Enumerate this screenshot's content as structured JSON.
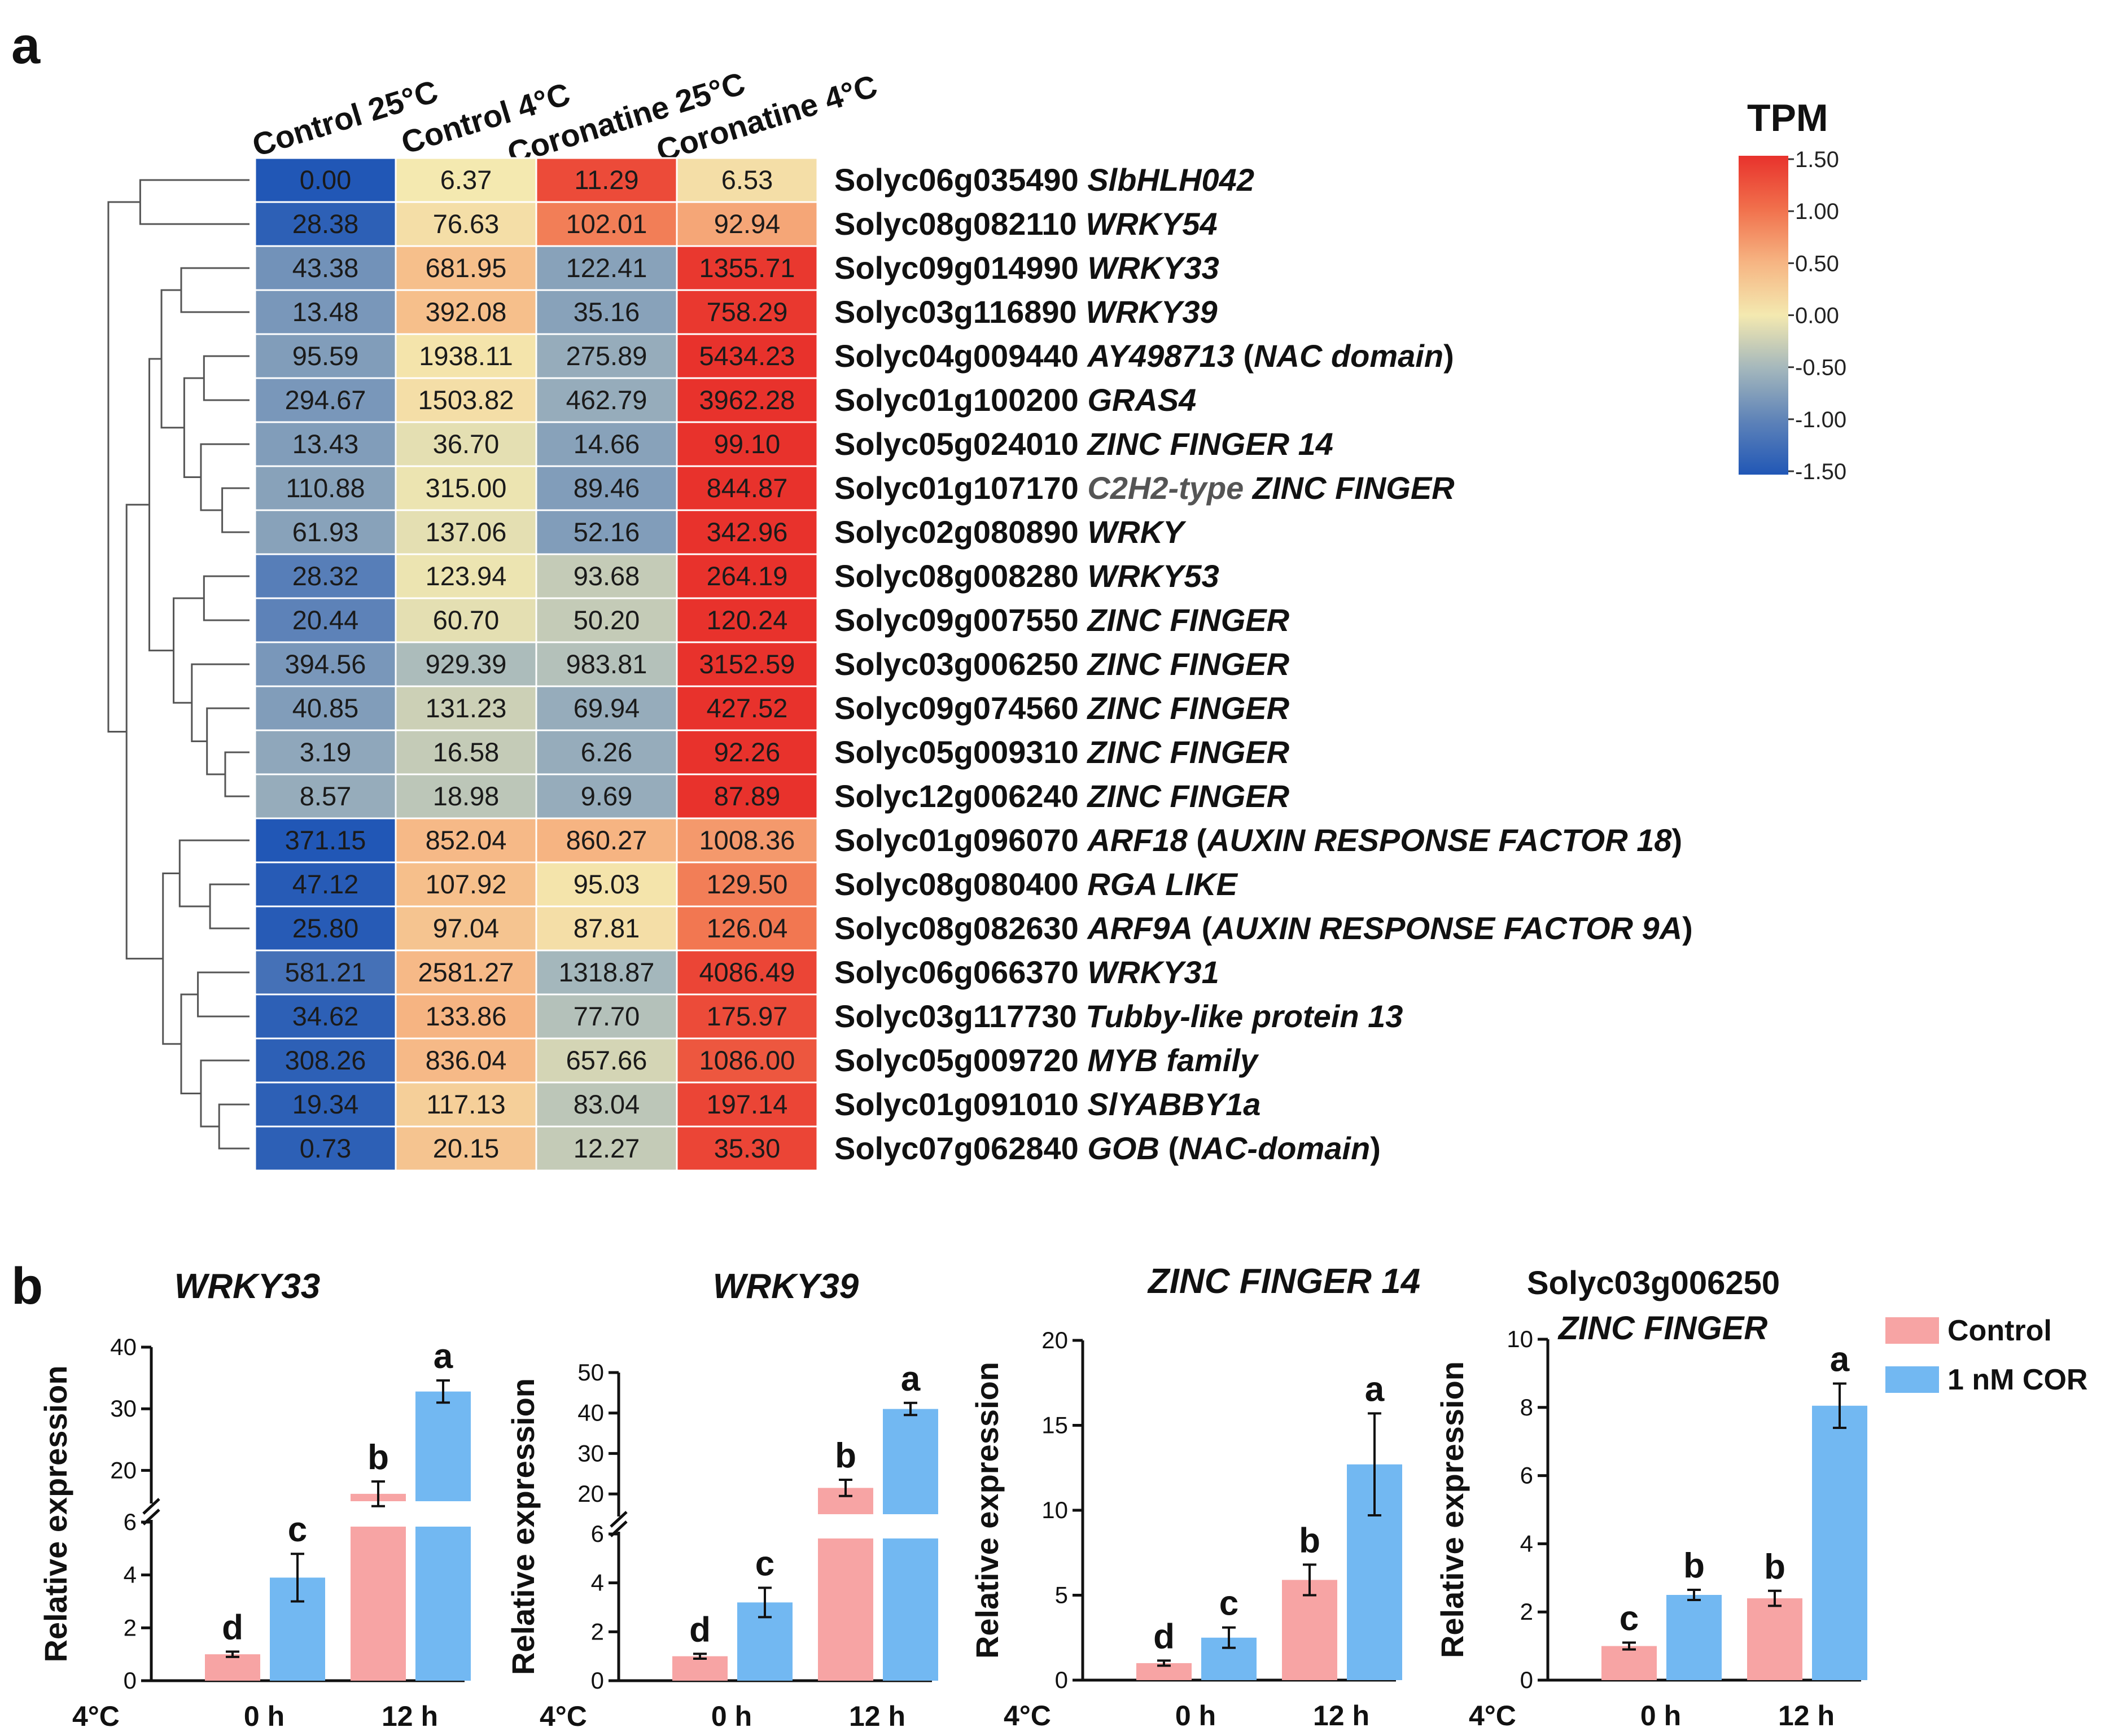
{
  "panel_a": {
    "label": "a",
    "columns": [
      "Control 25°C",
      "Control 4°C",
      "Coronatine 25°C",
      "Coronatine 4°C"
    ],
    "legend_title": "TPM",
    "legend_ticks": [
      "1.50",
      "1.00",
      "0.50",
      "0.00",
      "-0.50",
      "-1.00",
      "-1.50"
    ],
    "color_scale": [
      "#2157b6",
      "#5d82b8",
      "#a4b7bc",
      "#f4e9b0",
      "#f6b482",
      "#f1704c",
      "#e8322c"
    ],
    "rows": [
      {
        "id": "Solyc06g035490",
        "name": [
          [
            "SlbHLH042",
            true
          ]
        ],
        "values": [
          "0.00",
          "6.37",
          "11.29",
          "6.53"
        ],
        "z": [
          -1.5,
          0.0,
          1.3,
          0.1
        ]
      },
      {
        "id": "Solyc08g082110",
        "name": [
          [
            "WRKY54",
            true
          ]
        ],
        "values": [
          "28.38",
          "76.63",
          "102.01",
          "92.94"
        ],
        "z": [
          -1.4,
          0.1,
          0.9,
          0.6
        ]
      },
      {
        "id": "Solyc09g014990",
        "name": [
          [
            "WRKY33",
            true
          ]
        ],
        "values": [
          "43.38",
          "681.95",
          "122.41",
          "1355.71"
        ],
        "z": [
          -0.85,
          0.4,
          -0.7,
          1.45
        ]
      },
      {
        "id": "Solyc03g116890",
        "name": [
          [
            "WRKY39",
            true
          ]
        ],
        "values": [
          "13.48",
          "392.08",
          "35.16",
          "758.29"
        ],
        "z": [
          -0.8,
          0.4,
          -0.7,
          1.45
        ]
      },
      {
        "id": "Solyc04g009440",
        "name": [
          [
            "AY498713",
            true
          ],
          [
            " (",
            false
          ],
          [
            "NAC domain",
            true
          ],
          [
            ")",
            false
          ]
        ],
        "values": [
          "95.59",
          "1938.11",
          "275.89",
          "5434.23"
        ],
        "z": [
          -0.75,
          0.05,
          -0.6,
          1.5
        ]
      },
      {
        "id": "Solyc01g100200",
        "name": [
          [
            "GRAS4",
            true
          ]
        ],
        "values": [
          "294.67",
          "1503.82",
          "462.79",
          "3962.28"
        ],
        "z": [
          -0.8,
          0.1,
          -0.6,
          1.5
        ]
      },
      {
        "id": "Solyc05g024010",
        "name": [
          [
            "ZINC FINGER 14",
            true
          ]
        ],
        "values": [
          "13.43",
          "36.70",
          "14.66",
          "99.10"
        ],
        "z": [
          -0.75,
          -0.1,
          -0.7,
          1.5
        ]
      },
      {
        "id": "Solyc01g107170",
        "name": [
          [
            "C2H2-type",
            true,
            "#555555"
          ],
          [
            " ",
            false
          ],
          [
            "ZINC FINGER",
            true
          ]
        ],
        "values": [
          "110.88",
          "315.00",
          "89.46",
          "844.87"
        ],
        "z": [
          -0.7,
          -0.05,
          -0.75,
          1.5
        ]
      },
      {
        "id": "Solyc02g080890",
        "name": [
          [
            "WRKY",
            true
          ]
        ],
        "values": [
          "61.93",
          "137.06",
          "52.16",
          "342.96"
        ],
        "z": [
          -0.7,
          -0.1,
          -0.75,
          1.5
        ]
      },
      {
        "id": "Solyc08g008280",
        "name": [
          [
            "WRKY53",
            true
          ]
        ],
        "values": [
          "28.32",
          "123.94",
          "93.68",
          "264.19"
        ],
        "z": [
          -1.05,
          -0.05,
          -0.3,
          1.5
        ]
      },
      {
        "id": "Solyc09g007550",
        "name": [
          [
            "ZINC FINGER",
            true
          ]
        ],
        "values": [
          "20.44",
          "60.70",
          "50.20",
          "120.24"
        ],
        "z": [
          -1.0,
          -0.1,
          -0.3,
          1.5
        ]
      },
      {
        "id": "Solyc03g006250",
        "name": [
          [
            "ZINC FINGER",
            true
          ]
        ],
        "values": [
          "394.56",
          "929.39",
          "983.81",
          "3152.59"
        ],
        "z": [
          -0.8,
          -0.45,
          -0.4,
          1.5
        ]
      },
      {
        "id": "Solyc09g074560",
        "name": [
          [
            "ZINC FINGER",
            true
          ]
        ],
        "values": [
          "40.85",
          "131.23",
          "69.94",
          "427.52"
        ],
        "z": [
          -0.75,
          -0.25,
          -0.6,
          1.5
        ]
      },
      {
        "id": "Solyc05g009310",
        "name": [
          [
            "ZINC FINGER",
            true
          ]
        ],
        "values": [
          "3.19",
          "16.58",
          "6.26",
          "92.26"
        ],
        "z": [
          -0.65,
          -0.3,
          -0.6,
          1.5
        ]
      },
      {
        "id": "Solyc12g006240",
        "name": [
          [
            "ZINC FINGER",
            true
          ]
        ],
        "values": [
          "8.57",
          "18.98",
          "9.69",
          "87.89"
        ],
        "z": [
          -0.6,
          -0.35,
          -0.6,
          1.5
        ]
      },
      {
        "id": "Solyc01g096070",
        "name": [
          [
            "ARF18",
            true
          ],
          [
            " (",
            false
          ],
          [
            "AUXIN RESPONSE FACTOR 18",
            true
          ],
          [
            ")",
            false
          ]
        ],
        "values": [
          "371.15",
          "852.04",
          "860.27",
          "1008.36"
        ],
        "z": [
          -1.5,
          0.45,
          0.5,
          0.7
        ]
      },
      {
        "id": "Solyc08g080400",
        "name": [
          [
            "RGA LIKE",
            true
          ]
        ],
        "values": [
          "47.12",
          "107.92",
          "95.03",
          "129.50"
        ],
        "z": [
          -1.45,
          0.4,
          0.05,
          0.9
        ]
      },
      {
        "id": "Solyc08g082630",
        "name": [
          [
            "ARF9A",
            true
          ],
          [
            " (",
            false
          ],
          [
            "AUXIN RESPONSE FACTOR 9A",
            true
          ],
          [
            ")",
            false
          ]
        ],
        "values": [
          "25.80",
          "97.04",
          "87.81",
          "126.04"
        ],
        "z": [
          -1.45,
          0.35,
          0.1,
          0.95
        ]
      },
      {
        "id": "Solyc06g066370",
        "name": [
          [
            "WRKY31",
            true
          ]
        ],
        "values": [
          "581.21",
          "2581.27",
          "1318.87",
          "4086.49"
        ],
        "z": [
          -1.2,
          0.45,
          -0.5,
          1.35
        ]
      },
      {
        "id": "Solyc03g117730",
        "name": [
          [
            "Tubby-like protein 13",
            true
          ]
        ],
        "values": [
          "34.62",
          "133.86",
          "77.70",
          "175.97"
        ],
        "z": [
          -1.4,
          0.5,
          -0.4,
          1.3
        ]
      },
      {
        "id": "Solyc05g009720",
        "name": [
          [
            "MYB family",
            true
          ]
        ],
        "values": [
          "308.26",
          "836.04",
          "657.66",
          "1086.00"
        ],
        "z": [
          -1.4,
          0.45,
          -0.2,
          1.2
        ]
      },
      {
        "id": "Solyc01g091010",
        "name": [
          [
            "SlYABBY1a",
            true
          ]
        ],
        "values": [
          "19.34",
          "117.13",
          "83.04",
          "197.14"
        ],
        "z": [
          -1.4,
          0.25,
          -0.35,
          1.35
        ]
      },
      {
        "id": "Solyc07g062840",
        "name": [
          [
            "GOB",
            true
          ],
          [
            " (",
            false
          ],
          [
            "NAC-domain",
            true
          ],
          [
            ")",
            false
          ]
        ],
        "values": [
          "0.73",
          "20.15",
          "12.27",
          "35.30"
        ],
        "z": [
          -1.4,
          0.35,
          -0.3,
          1.35
        ]
      }
    ]
  },
  "panel_b": {
    "label": "b",
    "legend": {
      "control_label": "Control",
      "cor_label": "1 nM COR",
      "control_color": "#f7a4a4",
      "cor_color": "#72b8f2"
    },
    "x_prefix": "4°C",
    "ylabel": "Relative expression"
  },
  "chart_data": [
    {
      "type": "bar",
      "title": "WRKY33",
      "title_italic": true,
      "ylabel": "Relative expression",
      "categories": [
        "0 h",
        "12 h"
      ],
      "x_prefix": "4°C",
      "axis_break": true,
      "lower_range": [
        0,
        6
      ],
      "lower_ticks": [
        "0",
        "2",
        "4",
        "6"
      ],
      "upper_range": [
        15,
        40
      ],
      "upper_ticks": [
        "20",
        "30",
        "40"
      ],
      "series": [
        {
          "name": "Control",
          "values": [
            1.0,
            16.2
          ],
          "errors": [
            0.1,
            2.0
          ],
          "letters": [
            "d",
            "b"
          ]
        },
        {
          "name": "1 nM COR",
          "values": [
            3.9,
            32.8
          ],
          "errors": [
            0.9,
            1.8
          ],
          "letters": [
            "c",
            "a"
          ]
        }
      ]
    },
    {
      "type": "bar",
      "title": "WRKY39",
      "title_italic": true,
      "ylabel": "Relative expression",
      "categories": [
        "0 h",
        "12 h"
      ],
      "x_prefix": "4°C",
      "axis_break": true,
      "lower_range": [
        0,
        6
      ],
      "lower_ticks": [
        "0",
        "2",
        "4",
        "6"
      ],
      "upper_range": [
        15,
        50
      ],
      "upper_ticks": [
        "20",
        "30",
        "40",
        "50"
      ],
      "series": [
        {
          "name": "Control",
          "values": [
            1.0,
            21.5
          ],
          "errors": [
            0.1,
            2.0
          ],
          "letters": [
            "d",
            "b"
          ]
        },
        {
          "name": "1 nM COR",
          "values": [
            3.2,
            41.0
          ],
          "errors": [
            0.6,
            1.5
          ],
          "letters": [
            "c",
            "a"
          ]
        }
      ]
    },
    {
      "type": "bar",
      "title": "ZINC FINGER 14",
      "title_italic": true,
      "ylabel": "Relative expression",
      "categories": [
        "0 h",
        "12 h"
      ],
      "x_prefix": "4°C",
      "axis_break": false,
      "ylim": [
        0,
        20
      ],
      "ticks": [
        "0",
        "5",
        "10",
        "15",
        "20"
      ],
      "series": [
        {
          "name": "Control",
          "values": [
            1.0,
            5.9
          ],
          "errors": [
            0.15,
            0.9
          ],
          "letters": [
            "d",
            "b"
          ]
        },
        {
          "name": "1 nM COR",
          "values": [
            2.5,
            12.7
          ],
          "errors": [
            0.6,
            3.0
          ],
          "letters": [
            "c",
            "a"
          ]
        }
      ]
    },
    {
      "type": "bar",
      "title": "Solyc03g006250",
      "title_line2": "ZINC FINGER",
      "title_italic": false,
      "ylabel": "Relative expression",
      "categories": [
        "0 h",
        "12 h"
      ],
      "x_prefix": "4°C",
      "axis_break": false,
      "ylim": [
        0,
        10
      ],
      "ticks": [
        "0",
        "2",
        "4",
        "6",
        "8",
        "10"
      ],
      "series": [
        {
          "name": "Control",
          "values": [
            1.0,
            2.4
          ],
          "errors": [
            0.1,
            0.22
          ],
          "letters": [
            "c",
            "b"
          ]
        },
        {
          "name": "1 nM COR",
          "values": [
            2.5,
            8.05
          ],
          "errors": [
            0.15,
            0.65
          ],
          "letters": [
            "b",
            "a"
          ]
        }
      ]
    }
  ]
}
